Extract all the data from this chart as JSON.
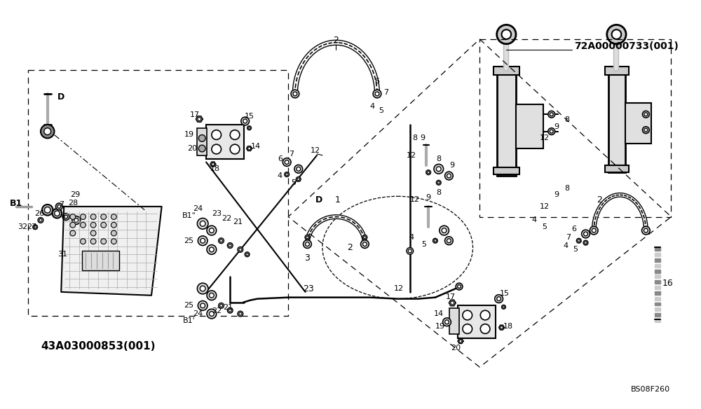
{
  "bg_color": "#ffffff",
  "fig_width": 10.0,
  "fig_height": 5.84,
  "dpi": 100,
  "ref1": "72A00000733(001)",
  "ref2": "43A03000853(001)",
  "watermark": "BS08F260"
}
